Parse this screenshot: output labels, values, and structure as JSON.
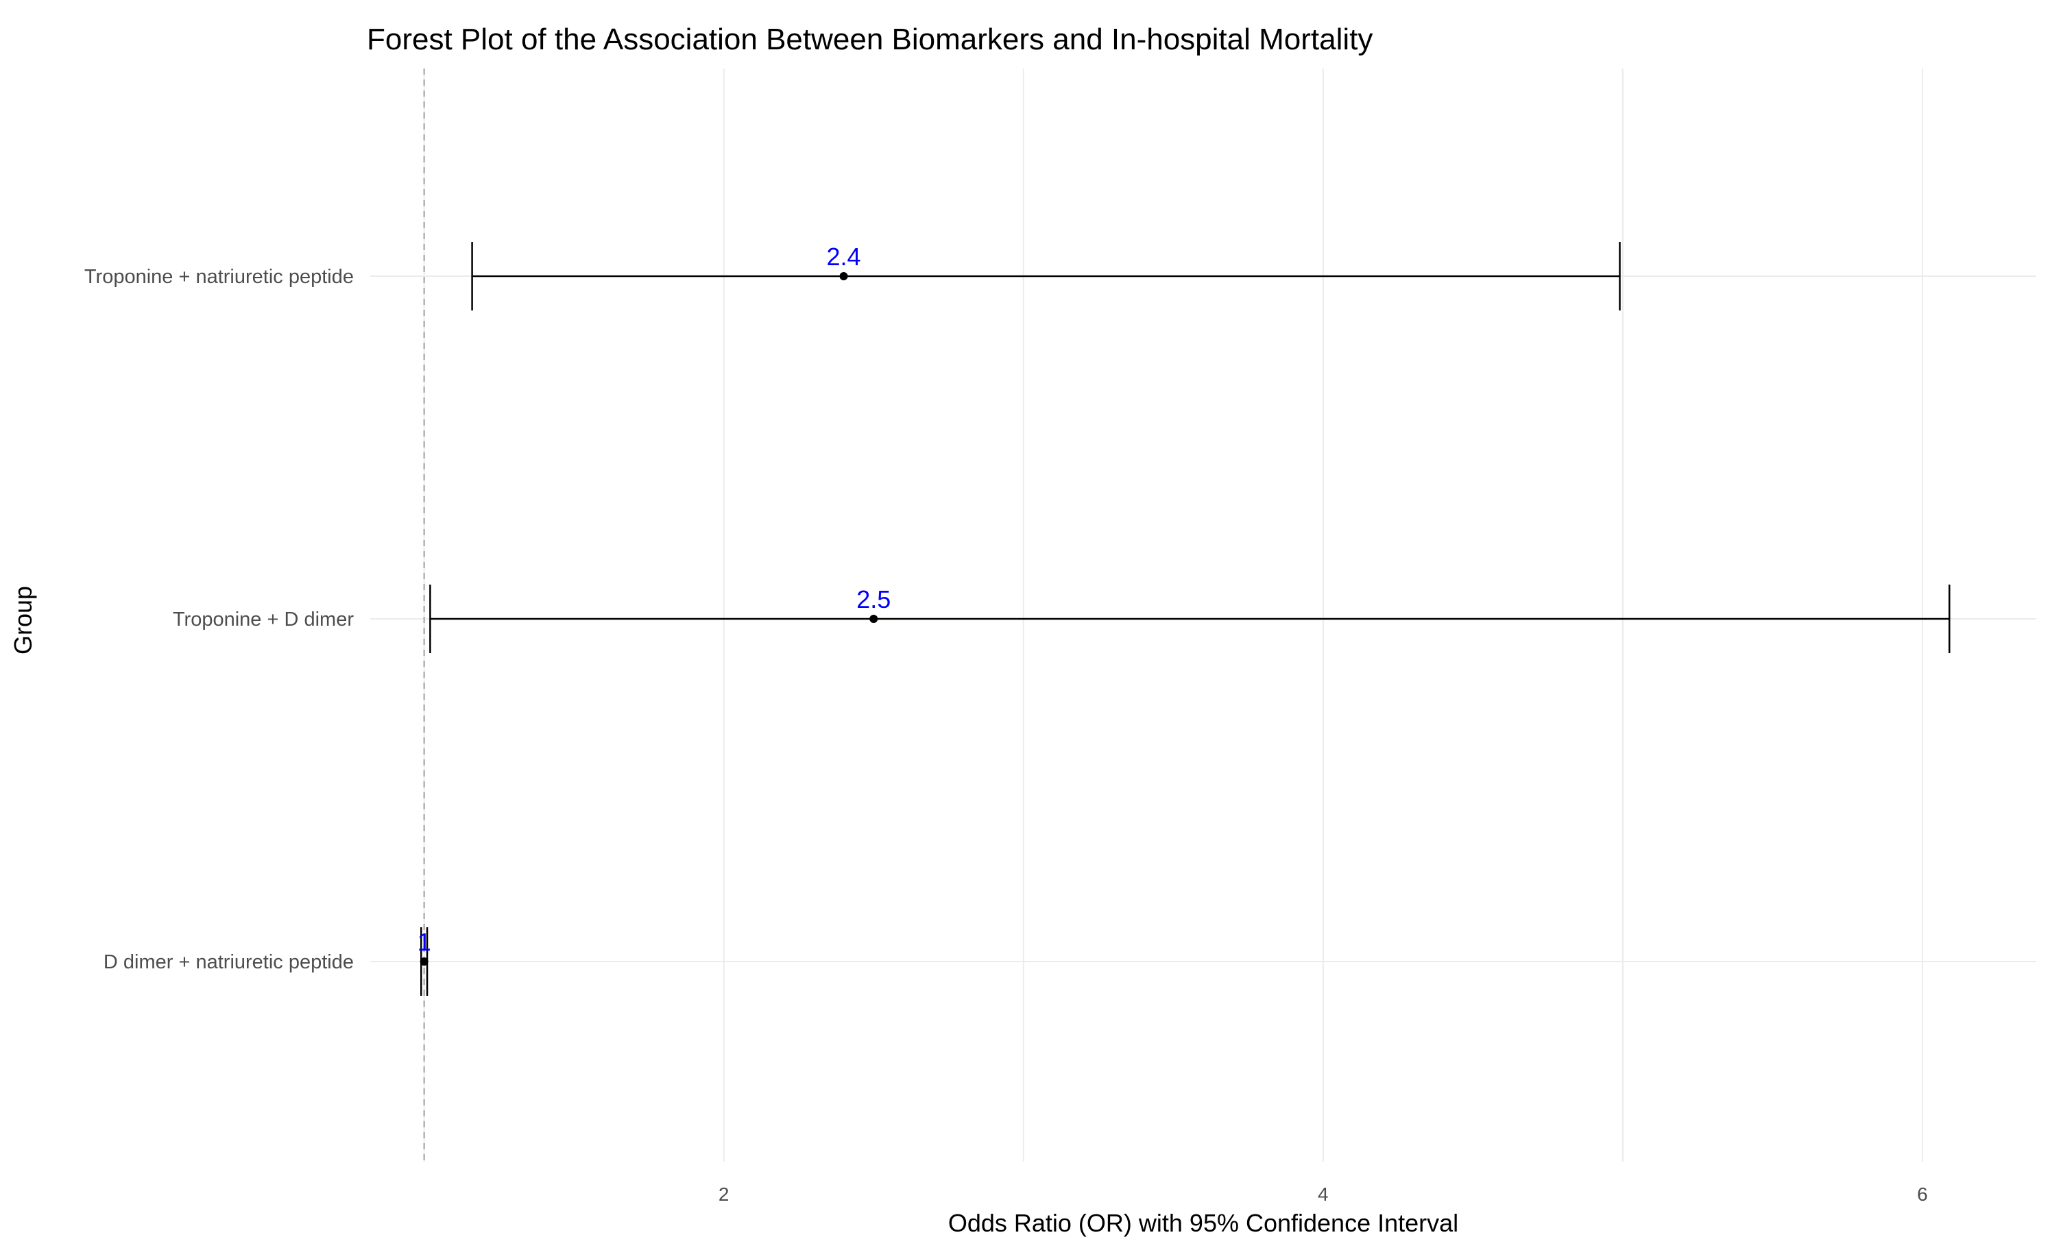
{
  "chart_data": {
    "type": "forest",
    "title": "Forest Plot of the Association Between Biomarkers and In-hospital Mortality",
    "xlabel": "Odds Ratio (OR) with 95% Confidence Interval",
    "ylabel": "Group",
    "xlim": [
      0.82,
      6.38
    ],
    "xticks": [
      2,
      4,
      6
    ],
    "reference_line": 1,
    "grid": true,
    "categories": [
      "Troponine + natriuretic peptide",
      "Troponine + D dimer",
      "D dimer + natriuretic peptide"
    ],
    "estimates": [
      2.4,
      2.5,
      1
    ],
    "ci_lower": [
      1.16,
      1.02,
      0.99
    ],
    "ci_upper": [
      4.99,
      6.09,
      1.01
    ],
    "data_labels": [
      "2.4",
      "2.5",
      "1"
    ],
    "colors": {
      "grid": "#ebebeb",
      "reference_line": "#b3b3b3",
      "errorbar": "#000000",
      "point": "#000000",
      "data_label": "#0000ff"
    }
  }
}
